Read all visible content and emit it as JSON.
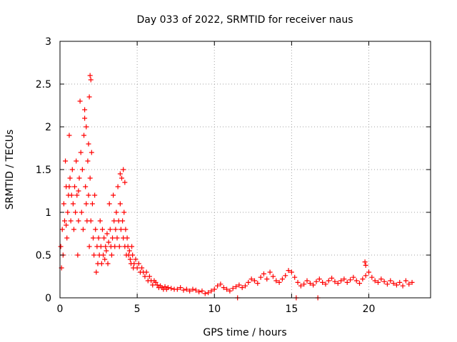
{
  "chart_data": {
    "type": "scatter",
    "title": "Day 033 of 2022, SRMTID for receiver naus",
    "xlabel": "GPS time / hours",
    "ylabel": "SRMTID / TECUs",
    "xlim": [
      0,
      24
    ],
    "ylim": [
      0,
      3
    ],
    "xticks": [
      0,
      5,
      10,
      15,
      20
    ],
    "xtick_labels": [
      "0",
      "5",
      "10",
      "15",
      "20"
    ],
    "yticks": [
      0,
      0.5,
      1,
      1.5,
      2,
      2.5,
      3
    ],
    "ytick_labels": [
      "0",
      "0.5",
      "1",
      "1.5",
      "2",
      "2.5",
      "3"
    ],
    "grid": true,
    "marker": "+",
    "color": "#ff0000",
    "series": [
      {
        "name": "SRMTID",
        "x": [
          0.05,
          0.1,
          0.15,
          0.2,
          0.25,
          0.3,
          0.35,
          0.4,
          0.45,
          0.5,
          0.55,
          0.6,
          0.65,
          0.7,
          0.75,
          0.8,
          0.85,
          0.9,
          0.95,
          1.0,
          1.05,
          1.1,
          1.15,
          1.2,
          1.25,
          1.3,
          1.35,
          1.4,
          1.45,
          1.5,
          1.55,
          1.6,
          1.65,
          1.7,
          1.75,
          1.8,
          1.85,
          1.9,
          1.95,
          2.0,
          2.05,
          2.1,
          2.15,
          2.2,
          2.25,
          2.3,
          2.35,
          2.4,
          2.45,
          2.5,
          2.55,
          2.6,
          2.65,
          2.7,
          2.75,
          2.8,
          2.85,
          2.9,
          2.95,
          3.0,
          3.05,
          3.1,
          3.15,
          3.2,
          3.25,
          3.3,
          3.35,
          3.4,
          3.45,
          3.5,
          3.55,
          3.6,
          3.65,
          3.7,
          3.75,
          3.8,
          3.85,
          3.9,
          3.95,
          4.0,
          4.05,
          4.1,
          4.15,
          4.2,
          4.25,
          4.3,
          4.35,
          4.4,
          4.45,
          4.5,
          4.55,
          4.6,
          4.65,
          4.7,
          4.75,
          4.8,
          4.9,
          5.0,
          5.1,
          5.2,
          5.3,
          5.4,
          5.5,
          5.6,
          5.7,
          5.8,
          5.9,
          6.0,
          6.1,
          6.2,
          6.3,
          6.4,
          6.5,
          6.6,
          6.7,
          6.8,
          6.9,
          7.0,
          7.2,
          7.4,
          7.6,
          7.8,
          8.0,
          8.2,
          8.4,
          8.6,
          8.8,
          9.0,
          9.2,
          9.4,
          9.6,
          9.8,
          10.0,
          10.2,
          10.4,
          10.6,
          10.8,
          11.0,
          11.2,
          11.4,
          11.6,
          11.8,
          12.0,
          12.2,
          12.4,
          12.6,
          12.8,
          13.0,
          13.2,
          13.4,
          13.6,
          13.8,
          14.0,
          14.2,
          14.4,
          14.6,
          14.8,
          15.0,
          15.2,
          15.4,
          15.6,
          15.8,
          16.0,
          16.2,
          16.4,
          16.6,
          16.8,
          17.0,
          17.2,
          17.4,
          17.6,
          17.8,
          18.0,
          18.2,
          18.4,
          18.6,
          18.8,
          19.0,
          19.2,
          19.4,
          19.6,
          19.8,
          20.0,
          20.2,
          20.4,
          20.6,
          20.8,
          21.0,
          21.2,
          21.4,
          21.6,
          21.8,
          22.0,
          22.2,
          22.4,
          22.6,
          22.8,
          1.9,
          1.95,
          2.0,
          1.85,
          1.7,
          1.6,
          1.2,
          0.6,
          0.4,
          3.9,
          4.1,
          4.2,
          19.75,
          19.8,
          15.3,
          16.7,
          11.5
        ],
        "y": [
          0.6,
          0.35,
          0.8,
          0.5,
          1.1,
          0.9,
          1.6,
          1.3,
          0.7,
          1.0,
          1.2,
          1.9,
          1.4,
          0.9,
          1.2,
          1.5,
          1.1,
          0.8,
          1.3,
          1.0,
          1.6,
          1.2,
          0.5,
          0.9,
          1.4,
          2.3,
          1.7,
          1.0,
          1.5,
          0.8,
          1.9,
          2.1,
          1.3,
          1.1,
          0.9,
          1.6,
          1.2,
          0.6,
          1.4,
          0.9,
          1.7,
          1.1,
          0.7,
          0.5,
          1.2,
          0.8,
          0.3,
          0.6,
          0.4,
          0.7,
          0.5,
          0.9,
          0.6,
          0.4,
          0.8,
          0.5,
          0.7,
          0.45,
          0.6,
          0.55,
          0.75,
          0.4,
          0.65,
          1.1,
          0.8,
          0.6,
          0.5,
          0.7,
          1.2,
          0.9,
          0.6,
          0.8,
          1.0,
          0.7,
          1.3,
          0.9,
          0.6,
          1.1,
          0.8,
          1.4,
          0.9,
          0.7,
          1.0,
          0.6,
          0.8,
          0.5,
          0.7,
          0.6,
          0.5,
          0.55,
          0.45,
          0.4,
          0.6,
          0.5,
          0.35,
          0.4,
          0.45,
          0.35,
          0.4,
          0.3,
          0.35,
          0.3,
          0.25,
          0.3,
          0.2,
          0.25,
          0.2,
          0.15,
          0.2,
          0.18,
          0.15,
          0.12,
          0.14,
          0.12,
          0.1,
          0.13,
          0.1,
          0.12,
          0.11,
          0.1,
          0.1,
          0.12,
          0.09,
          0.1,
          0.08,
          0.1,
          0.09,
          0.07,
          0.08,
          0.05,
          0.06,
          0.08,
          0.1,
          0.14,
          0.16,
          0.12,
          0.1,
          0.08,
          0.11,
          0.13,
          0.15,
          0.12,
          0.14,
          0.18,
          0.22,
          0.2,
          0.17,
          0.24,
          0.28,
          0.22,
          0.3,
          0.25,
          0.2,
          0.18,
          0.22,
          0.26,
          0.32,
          0.3,
          0.24,
          0.18,
          0.14,
          0.16,
          0.2,
          0.17,
          0.15,
          0.19,
          0.22,
          0.18,
          0.16,
          0.2,
          0.23,
          0.19,
          0.17,
          0.2,
          0.22,
          0.18,
          0.21,
          0.24,
          0.2,
          0.17,
          0.22,
          0.26,
          0.3,
          0.24,
          0.2,
          0.18,
          0.22,
          0.19,
          0.16,
          0.2,
          0.17,
          0.15,
          0.18,
          0.14,
          0.2,
          0.16,
          0.18,
          2.35,
          2.6,
          2.55,
          1.8,
          2.0,
          2.2,
          1.25,
          1.3,
          0.85,
          1.45,
          1.5,
          1.35,
          0.42,
          0.38,
          0.0,
          0.0,
          0.0
        ]
      }
    ]
  }
}
